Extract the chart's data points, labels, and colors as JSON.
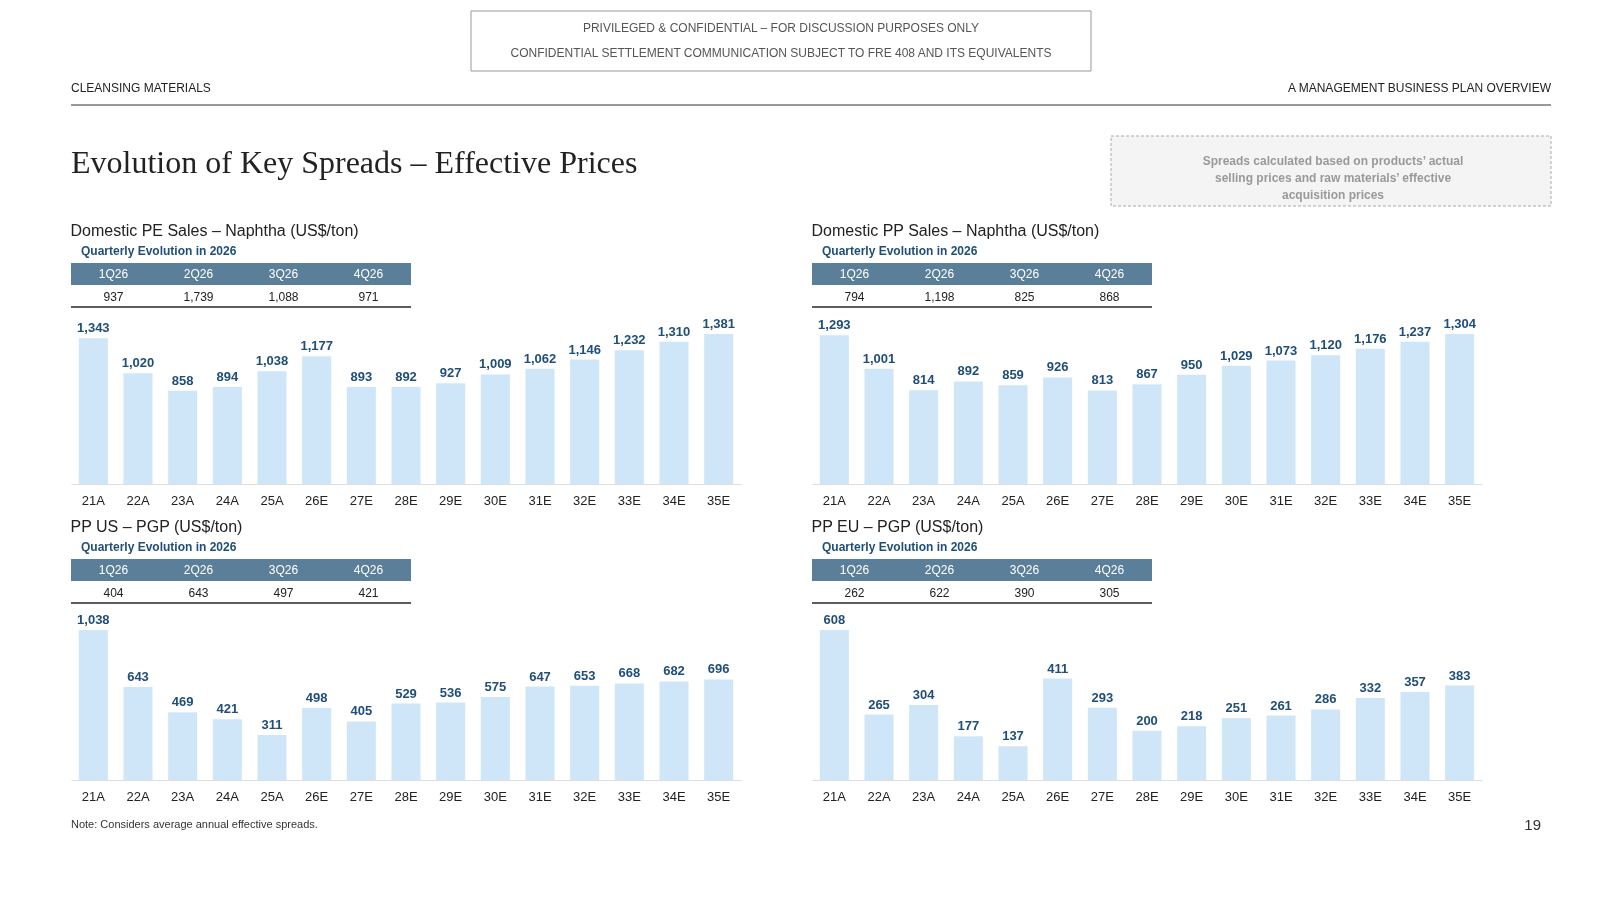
{
  "chart_data": [
    {
      "type": "other",
      "title": "Evolution of Key Spreads – Effective Prices",
      "annotations": [
        "PRIVILEGED & CONFIDENTIAL – FOR DISCUSSION PURPOSES ONLY",
        "CONFIDENTIAL SETTLEMENT COMMUNICATION SUBJECT TO FRE 408 AND ITS EQUIVALENTS",
        "CLEANSING MATERIALS",
        "A   MANAGEMENT BUSINESS PLAN OVERVIEW",
        "Spreads calculated based on products’ actual selling prices and raw materials’ effective acquisition prices"
      ]
    },
    {
      "type": "other",
      "title": "Quarterly Evolution in 2026",
      "categories": [
        "1Q26",
        "2Q26",
        "3Q26",
        "4Q26"
      ],
      "values": [
        937,
        1739,
        1088,
        971
      ],
      "value_labels": [
        "937",
        "1,739",
        "1,088",
        "971"
      ]
    },
    {
      "type": "bar",
      "title": "Domestic PE Sales – Naphtha (US$/ton)",
      "categories": [
        "21A",
        "22A",
        "23A",
        "24A",
        "25A",
        "26E",
        "27E",
        "28E",
        "29E",
        "30E",
        "31E",
        "32E",
        "33E",
        "34E",
        "35E"
      ],
      "values": [
        1343,
        1020,
        858,
        894,
        1038,
        1177,
        893,
        892,
        927,
        1009,
        1062,
        1146,
        1232,
        1310,
        1381
      ],
      "color": "#cfe6f8",
      "value_labels": [
        "1,343",
        "1,020",
        "858",
        "894",
        "1,038",
        "1,177",
        "893",
        "892",
        "927",
        "1,009",
        "1,062",
        "1,146",
        "1,232",
        "1,310",
        "1,381"
      ]
    },
    {
      "type": "other",
      "title": "Quarterly Evolution in 2026",
      "categories": [
        "1Q26",
        "2Q26",
        "3Q26",
        "4Q26"
      ],
      "values": [
        794,
        1198,
        825,
        868
      ],
      "value_labels": [
        "794",
        "1,198",
        "825",
        "868"
      ]
    },
    {
      "type": "bar",
      "title": "Domestic PP Sales – Naphtha (US$/ton)",
      "categories": [
        "21A",
        "22A",
        "23A",
        "24A",
        "25A",
        "26E",
        "27E",
        "28E",
        "29E",
        "30E",
        "31E",
        "32E",
        "33E",
        "34E",
        "35E"
      ],
      "values": [
        1293,
        1001,
        814,
        892,
        859,
        926,
        813,
        867,
        950,
        1029,
        1073,
        1120,
        1176,
        1237,
        1304
      ],
      "color": "#cfe6f8",
      "value_labels": [
        "1,293",
        "1,001",
        "814",
        "892",
        "859",
        "926",
        "813",
        "867",
        "950",
        "1,029",
        "1,073",
        "1,120",
        "1,176",
        "1,237",
        "1,304"
      ]
    },
    {
      "type": "other",
      "title": "Quarterly Evolution in 2026",
      "categories": [
        "1Q26",
        "2Q26",
        "3Q26",
        "4Q26"
      ],
      "values": [
        404,
        643,
        497,
        421
      ],
      "value_labels": [
        "404",
        "643",
        "497",
        "421"
      ]
    },
    {
      "type": "bar",
      "title": "PP US – PGP (US$/ton)",
      "categories": [
        "21A",
        "22A",
        "23A",
        "24A",
        "25A",
        "26E",
        "27E",
        "28E",
        "29E",
        "30E",
        "31E",
        "32E",
        "33E",
        "34E",
        "35E"
      ],
      "values": [
        1038,
        643,
        469,
        421,
        311,
        498,
        405,
        529,
        536,
        575,
        647,
        653,
        668,
        682,
        696
      ],
      "color": "#cfe6f8",
      "value_labels": [
        "1,038",
        "643",
        "469",
        "421",
        "311",
        "498",
        "405",
        "529",
        "536",
        "575",
        "647",
        "653",
        "668",
        "682",
        "696"
      ]
    },
    {
      "type": "other",
      "title": "Quarterly Evolution in 2026",
      "categories": [
        "1Q26",
        "2Q26",
        "3Q26",
        "4Q26"
      ],
      "values": [
        262,
        622,
        390,
        305
      ],
      "value_labels": [
        "262",
        "622",
        "390",
        "305"
      ]
    },
    {
      "type": "bar",
      "title": "PP EU – PGP (US$/ton)",
      "categories": [
        "21A",
        "22A",
        "23A",
        "24A",
        "25A",
        "26E",
        "27E",
        "28E",
        "29E",
        "30E",
        "31E",
        "32E",
        "33E",
        "34E",
        "35E"
      ],
      "values": [
        608,
        265,
        304,
        177,
        137,
        411,
        293,
        200,
        218,
        251,
        261,
        286,
        332,
        357,
        383
      ],
      "color": "#cfe6f8",
      "value_labels": [
        "608",
        "265",
        "304",
        "177",
        "137",
        "411",
        "293",
        "200",
        "218",
        "251",
        "261",
        "286",
        "332",
        "357",
        "383"
      ]
    },
    {
      "type": "other",
      "annotations": [
        "Note:    Considers average annual effective spreads.",
        "19"
      ]
    }
  ]
}
